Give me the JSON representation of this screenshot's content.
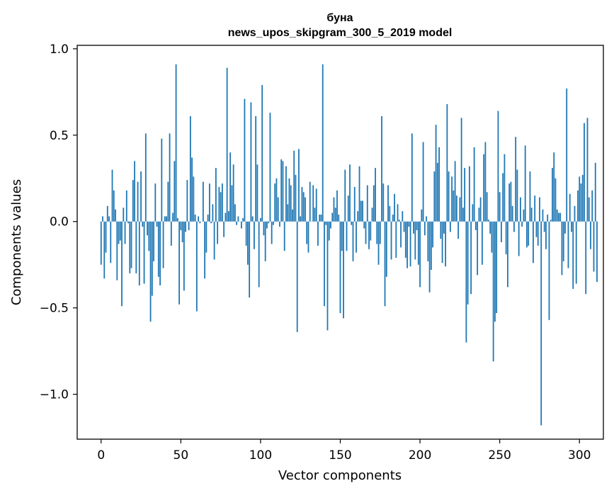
{
  "chart_data": {
    "type": "bar",
    "title": "буна",
    "subtitle": "news_upos_skipgram_300_5_2019 model",
    "xlabel": "Vector components",
    "ylabel": "Components values",
    "xlim": [
      -15,
      315
    ],
    "ylim": [
      -1.26,
      1.02
    ],
    "xticks": [
      0,
      50,
      100,
      150,
      200,
      250,
      300
    ],
    "xtick_labels": [
      "0",
      "50",
      "100",
      "150",
      "200",
      "250",
      "300"
    ],
    "yticks": [
      -1.0,
      -0.5,
      0.0,
      0.5,
      1.0
    ],
    "ytick_labels": [
      "−1.0",
      "−0.5",
      "0.0",
      "0.5",
      "1.0"
    ],
    "bar_color": "#1f77b4",
    "values": [
      -0.25,
      0.03,
      -0.33,
      -0.18,
      0.09,
      0.03,
      -0.24,
      0.3,
      0.18,
      0.07,
      -0.34,
      -0.13,
      -0.11,
      -0.49,
      0.08,
      -0.13,
      0.18,
      -0.01,
      -0.3,
      -0.27,
      0.24,
      0.35,
      -0.3,
      0.23,
      -0.37,
      0.29,
      -0.03,
      -0.36,
      0.51,
      -0.08,
      -0.17,
      -0.58,
      -0.43,
      -0.23,
      0.22,
      -0.03,
      -0.32,
      -0.37,
      0.48,
      -0.27,
      0.03,
      0.03,
      0.23,
      0.51,
      -0.14,
      0.05,
      0.35,
      0.91,
      0.02,
      -0.48,
      -0.05,
      -0.12,
      -0.4,
      -0.06,
      0.24,
      -0.05,
      0.61,
      0.37,
      0.26,
      0.04,
      -0.52,
      0.03,
      -0.01,
      0.0,
      0.23,
      -0.33,
      -0.18,
      0.04,
      0.22,
      -0.01,
      0.1,
      -0.22,
      0.31,
      -0.13,
      0.2,
      0.17,
      0.22,
      -0.09,
      0.05,
      0.89,
      0.06,
      0.4,
      0.21,
      0.33,
      0.1,
      -0.02,
      0.03,
      0.0,
      -0.04,
      0.02,
      0.71,
      -0.14,
      -0.25,
      -0.44,
      0.69,
      0.03,
      -0.16,
      0.61,
      0.33,
      -0.38,
      0.02,
      0.79,
      -0.08,
      -0.23,
      -0.04,
      -0.01,
      0.63,
      -0.13,
      -0.02,
      0.22,
      0.25,
      0.14,
      -0.03,
      0.36,
      0.35,
      -0.17,
      0.32,
      0.1,
      0.25,
      0.21,
      0.07,
      0.41,
      0.27,
      -0.64,
      0.42,
      0.03,
      0.2,
      0.17,
      0.14,
      -0.13,
      -0.18,
      0.23,
      0.0,
      0.21,
      0.08,
      0.19,
      -0.14,
      0.04,
      0.04,
      0.91,
      -0.49,
      -0.02,
      -0.63,
      -0.11,
      -0.04,
      0.05,
      0.14,
      0.08,
      0.18,
      0.04,
      -0.53,
      -0.17,
      -0.56,
      0.3,
      -0.17,
      0.15,
      0.33,
      -0.02,
      -0.23,
      0.2,
      -0.18,
      0.06,
      0.32,
      0.12,
      0.12,
      -0.04,
      -0.13,
      0.21,
      -0.16,
      -0.11,
      0.08,
      0.21,
      0.31,
      -0.13,
      -0.25,
      -0.13,
      0.61,
      0.22,
      -0.49,
      -0.32,
      0.21,
      0.09,
      -0.22,
      0.04,
      0.16,
      -0.21,
      0.1,
      0.01,
      -0.15,
      0.06,
      -0.06,
      -0.21,
      -0.27,
      -0.03,
      -0.26,
      0.51,
      -0.07,
      -0.22,
      -0.05,
      -0.25,
      -0.38,
      0.07,
      0.46,
      -0.08,
      0.03,
      -0.23,
      -0.41,
      -0.28,
      -0.15,
      0.29,
      0.56,
      0.34,
      0.43,
      -0.1,
      -0.24,
      -0.07,
      -0.26,
      0.68,
      0.29,
      -0.06,
      0.26,
      0.18,
      0.35,
      0.15,
      -0.1,
      0.14,
      0.6,
      0.08,
      0.31,
      -0.7,
      -0.48,
      0.32,
      -0.42,
      0.1,
      0.43,
      -0.05,
      -0.31,
      0.08,
      0.14,
      -0.25,
      0.39,
      0.46,
      0.17,
      0.01,
      -0.07,
      -0.18,
      -0.81,
      -0.58,
      -0.53,
      0.64,
      0.17,
      -0.12,
      0.28,
      0.39,
      -0.19,
      -0.38,
      0.22,
      0.23,
      0.09,
      -0.06,
      0.49,
      0.3,
      -0.2,
      0.14,
      -0.03,
      0.07,
      0.44,
      -0.15,
      -0.14,
      0.29,
      0.08,
      -0.24,
      0.15,
      -0.09,
      -0.14,
      0.14,
      -1.18,
      0.07,
      -0.06,
      -0.16,
      0.04,
      -0.57,
      0.01,
      0.31,
      0.4,
      0.25,
      0.07,
      0.05,
      0.05,
      -0.31,
      -0.23,
      -0.07,
      0.77,
      -0.27,
      0.16,
      -0.06,
      -0.39,
      0.09,
      -0.36,
      0.18,
      0.26,
      0.22,
      0.27,
      0.57,
      -0.42,
      0.6,
      0.14,
      -0.16,
      0.18,
      -0.29,
      0.34,
      -0.35
    ]
  }
}
